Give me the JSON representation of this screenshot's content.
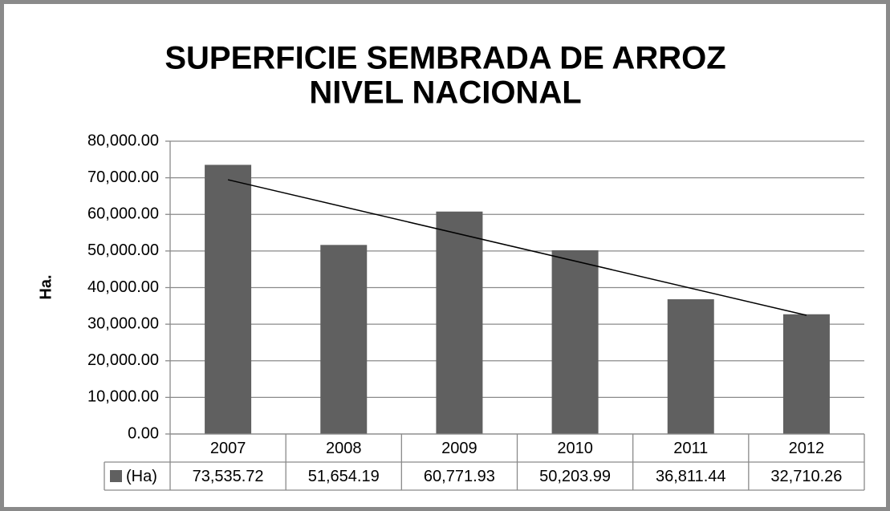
{
  "chart_data": {
    "type": "bar",
    "title": [
      "SUPERFICIE SEMBRADA DE ARROZ",
      "NIVEL NACIONAL"
    ],
    "y_label": "Ha.",
    "categories": [
      "2007",
      "2008",
      "2009",
      "2010",
      "2011",
      "2012"
    ],
    "series": [
      {
        "name": "(Ha)",
        "color": "#606060",
        "values": [
          73535.72,
          51654.19,
          60771.93,
          50203.99,
          36811.44,
          32710.26
        ],
        "value_labels": [
          "73,535.72",
          "51,654.19",
          "60,771.93",
          "50,203.99",
          "36,811.44",
          "32,710.26"
        ]
      }
    ],
    "ylim": [
      0,
      80000
    ],
    "yticks": [
      {
        "value": 0,
        "label": "0.00"
      },
      {
        "value": 10000,
        "label": "10,000.00"
      },
      {
        "value": 20000,
        "label": "20,000.00"
      },
      {
        "value": 30000,
        "label": "30,000.00"
      },
      {
        "value": 40000,
        "label": "40,000.00"
      },
      {
        "value": 50000,
        "label": "50,000.00"
      },
      {
        "value": 60000,
        "label": "60,000.00"
      },
      {
        "value": 70000,
        "label": "70,000.00"
      },
      {
        "value": 80000,
        "label": "80,000.00"
      }
    ],
    "grid": true,
    "trendline": "linear",
    "data_table": true
  }
}
